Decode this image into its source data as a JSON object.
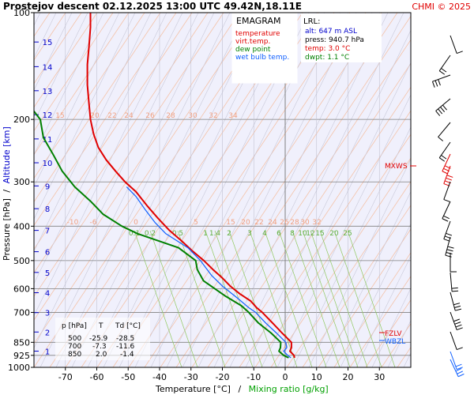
{
  "header": {
    "title": "Prostejov  descent  02.12.2025 13:00 UTC  49.42N,18.11E",
    "copyright": "CHMI © 2025"
  },
  "legend": {
    "title": "EMAGRAM",
    "items": [
      {
        "label": "temperature",
        "color": "#e00000"
      },
      {
        "label": "virt.temp.",
        "color": "#e00000"
      },
      {
        "label": "dew point",
        "color": "#008000"
      },
      {
        "label": "wet bulb temp.",
        "color": "#1060ff"
      }
    ]
  },
  "lrl": {
    "title": "LRL:",
    "lines": [
      {
        "text": "alt: 647 m ASL",
        "color": "#0000cc"
      },
      {
        "text": "press: 940.7 hPa",
        "color": "#000000"
      },
      {
        "text": "temp: 3.0 °C",
        "color": "#e00000"
      },
      {
        "text": "dwpt: 1.1 °C",
        "color": "#008000"
      }
    ]
  },
  "levels_table": {
    "headers": [
      "p [hPa]",
      "T",
      "Td [°C]"
    ],
    "rows": [
      [
        "500",
        "-25.9",
        "-28.5"
      ],
      [
        "700",
        "-7.3",
        "-11.6"
      ],
      [
        "850",
        "2.0",
        "-1.4"
      ]
    ]
  },
  "markers": {
    "mxws": "MXWS",
    "fzlv": "FZLV",
    "wbzl": "WBZL"
  },
  "axes": {
    "ylabel_left": "Pressure [hPa]",
    "ylabel_sep": "/",
    "ylabel_right": "Altitude [km]",
    "xlabel_left": "Temperature [°C]",
    "xlabel_sep": "/",
    "xlabel_right": "Mixing ratio [g/kg]"
  },
  "chart_data": {
    "type": "line",
    "y_scale": "log",
    "xlim": [
      -80,
      40
    ],
    "ylim": [
      1000,
      100
    ],
    "grid": true,
    "x_ticks": [
      -70,
      -60,
      -50,
      -40,
      -30,
      -20,
      -10,
      0,
      10,
      20,
      30
    ],
    "y_ticks": [
      100,
      200,
      300,
      400,
      500,
      600,
      700,
      850,
      925,
      1000
    ],
    "altitude_ticks_km": [
      {
        "km": 1,
        "p": 900
      },
      {
        "km": 2,
        "p": 795
      },
      {
        "km": 3,
        "p": 701
      },
      {
        "km": 4,
        "p": 616
      },
      {
        "km": 5,
        "p": 540
      },
      {
        "km": 6,
        "p": 472
      },
      {
        "km": 7,
        "p": 411
      },
      {
        "km": 8,
        "p": 357
      },
      {
        "km": 9,
        "p": 308
      },
      {
        "km": 10,
        "p": 265
      },
      {
        "km": 11,
        "p": 227
      },
      {
        "km": 12,
        "p": 194
      },
      {
        "km": 13,
        "p": 166
      },
      {
        "km": 14,
        "p": 142
      },
      {
        "km": 15,
        "p": 121
      }
    ],
    "isotherm_labels": {
      "upper": {
        "p": 195,
        "values": [
          15,
          20,
          22,
          24,
          26,
          28,
          30,
          32,
          34
        ]
      },
      "lower": {
        "p": 380,
        "values": [
          -10,
          -6,
          0,
          5,
          15,
          20,
          22,
          24,
          26,
          28,
          30,
          32,
          34
        ]
      }
    },
    "mixing_ratio_labels": [
      "0.1",
      "0.2",
      "0.5",
      "1",
      "1.4",
      "2",
      "3",
      "4",
      "6",
      "8",
      "10",
      "12",
      "15",
      "20",
      "25"
    ],
    "series": [
      {
        "name": "temperature",
        "color": "#e00000",
        "points": [
          [
            3.0,
            940
          ],
          [
            2.8,
            925
          ],
          [
            1.5,
            900
          ],
          [
            2.0,
            880
          ],
          [
            2.0,
            850
          ],
          [
            -1.0,
            800
          ],
          [
            -4.0,
            750
          ],
          [
            -7.3,
            700
          ],
          [
            -9.0,
            680
          ],
          [
            -11.0,
            650
          ],
          [
            -14.5,
            620
          ],
          [
            -17.5,
            590
          ],
          [
            -20.0,
            560
          ],
          [
            -23.0,
            530
          ],
          [
            -25.9,
            500
          ],
          [
            -29.5,
            470
          ],
          [
            -33.0,
            440
          ],
          [
            -37.0,
            410
          ],
          [
            -40.5,
            380
          ],
          [
            -44.0,
            350
          ],
          [
            -47.5,
            320
          ],
          [
            -51.0,
            300
          ],
          [
            -54.0,
            280
          ],
          [
            -57.0,
            260
          ],
          [
            -59.5,
            240
          ],
          [
            -61.0,
            220
          ],
          [
            -62.0,
            200
          ],
          [
            -62.5,
            180
          ],
          [
            -63.0,
            160
          ],
          [
            -63.0,
            140
          ],
          [
            -62.5,
            125
          ],
          [
            -62.0,
            110
          ],
          [
            -62.0,
            100
          ]
        ]
      },
      {
        "name": "dew point",
        "color": "#008000",
        "points": [
          [
            1.1,
            940
          ],
          [
            -0.5,
            925
          ],
          [
            -2.0,
            900
          ],
          [
            -1.5,
            880
          ],
          [
            -1.4,
            850
          ],
          [
            -4.5,
            800
          ],
          [
            -8.5,
            750
          ],
          [
            -11.6,
            700
          ],
          [
            -14.0,
            670
          ],
          [
            -19.0,
            630
          ],
          [
            -26.0,
            570
          ],
          [
            -28.0,
            530
          ],
          [
            -28.5,
            500
          ],
          [
            -34.0,
            460
          ],
          [
            -47.0,
            420
          ],
          [
            -52.0,
            400
          ],
          [
            -58.0,
            370
          ],
          [
            -62.0,
            340
          ],
          [
            -67.0,
            310
          ],
          [
            -71.0,
            280
          ],
          [
            -74.0,
            250
          ],
          [
            -77.0,
            225
          ],
          [
            -78.0,
            200
          ],
          [
            -82.0,
            180
          ]
        ]
      },
      {
        "name": "wet bulb temp.",
        "color": "#1060ff",
        "points": [
          [
            1.8,
            940
          ],
          [
            0.8,
            925
          ],
          [
            -0.5,
            900
          ],
          [
            0.5,
            880
          ],
          [
            0.2,
            850
          ],
          [
            -2.8,
            800
          ],
          [
            -6.2,
            750
          ],
          [
            -9.4,
            700
          ],
          [
            -11.5,
            680
          ],
          [
            -15.0,
            640
          ],
          [
            -20.0,
            590
          ],
          [
            -23.5,
            550
          ],
          [
            -27.0,
            500
          ],
          [
            -31.0,
            460
          ],
          [
            -38.0,
            420
          ],
          [
            -41.5,
            390
          ],
          [
            -44.5,
            360
          ],
          [
            -47.5,
            330
          ],
          [
            -50.5,
            310
          ]
        ]
      }
    ]
  }
}
